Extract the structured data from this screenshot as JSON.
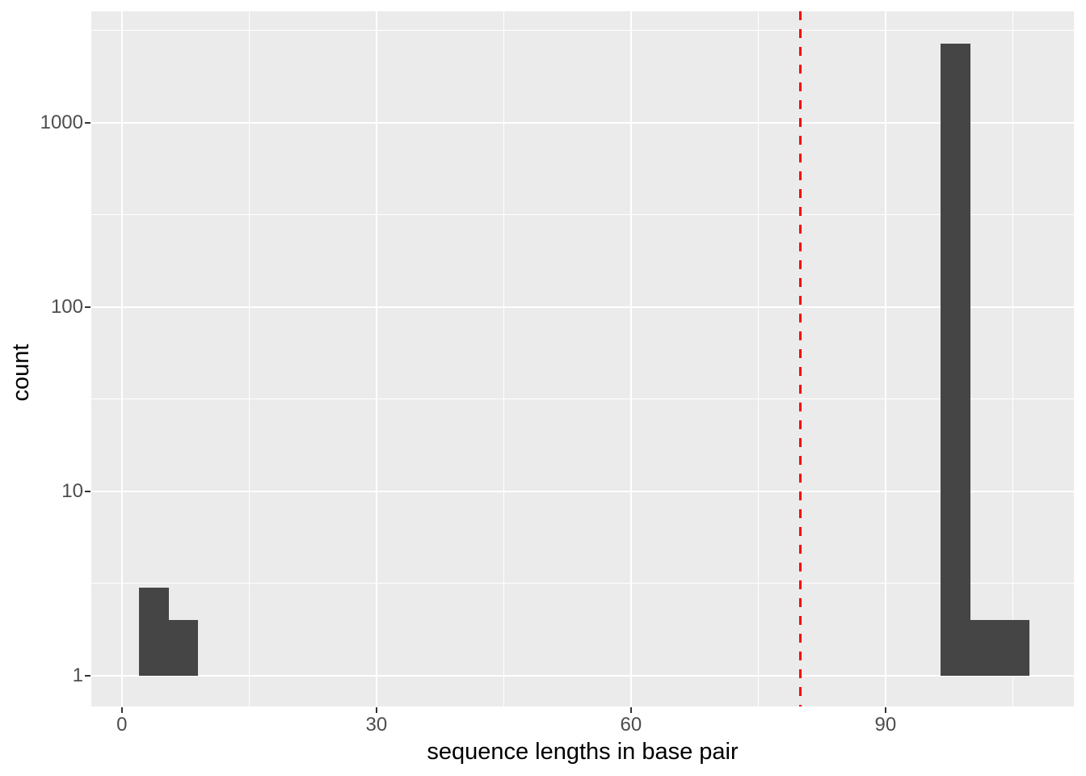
{
  "chart_data": {
    "type": "bar",
    "subtype": "histogram",
    "title": "",
    "xlabel": "sequence lengths in base pair",
    "ylabel": "count",
    "x_ticks": [
      0,
      30,
      60,
      90
    ],
    "x_minor_ticks": [
      15,
      45,
      75,
      105
    ],
    "y_ticks": [
      1,
      10,
      100,
      1000
    ],
    "y_minor_log10": [
      0.5,
      1.5,
      2.5,
      3.5
    ],
    "y_scale": "log10",
    "xlim": [
      -3.6,
      112.2
    ],
    "ylim_log10": [
      -0.167,
      3.605
    ],
    "grid": true,
    "legend": null,
    "bar_baseline": 1,
    "bins": [
      {
        "x0": 2.0,
        "x1": 5.5,
        "count": 3
      },
      {
        "x0": 5.5,
        "x1": 9.0,
        "count": 2
      },
      {
        "x0": 96.5,
        "x1": 100.0,
        "count": 2700
      },
      {
        "x0": 100.0,
        "x1": 103.5,
        "count": 2
      },
      {
        "x0": 103.5,
        "x1": 107.0,
        "count": 2
      }
    ],
    "vline": {
      "x": 80,
      "style": "dashed",
      "color": "#FF0000"
    },
    "colors": {
      "background": "#FFFFFF",
      "panel_bg": "#EBEBEB",
      "grid": "#FFFFFF",
      "bar": "#454545",
      "vline": "#FF0000",
      "tick_label": "#4D4D4D",
      "axis_title": "#000000",
      "tick_mark": "#333333"
    }
  }
}
